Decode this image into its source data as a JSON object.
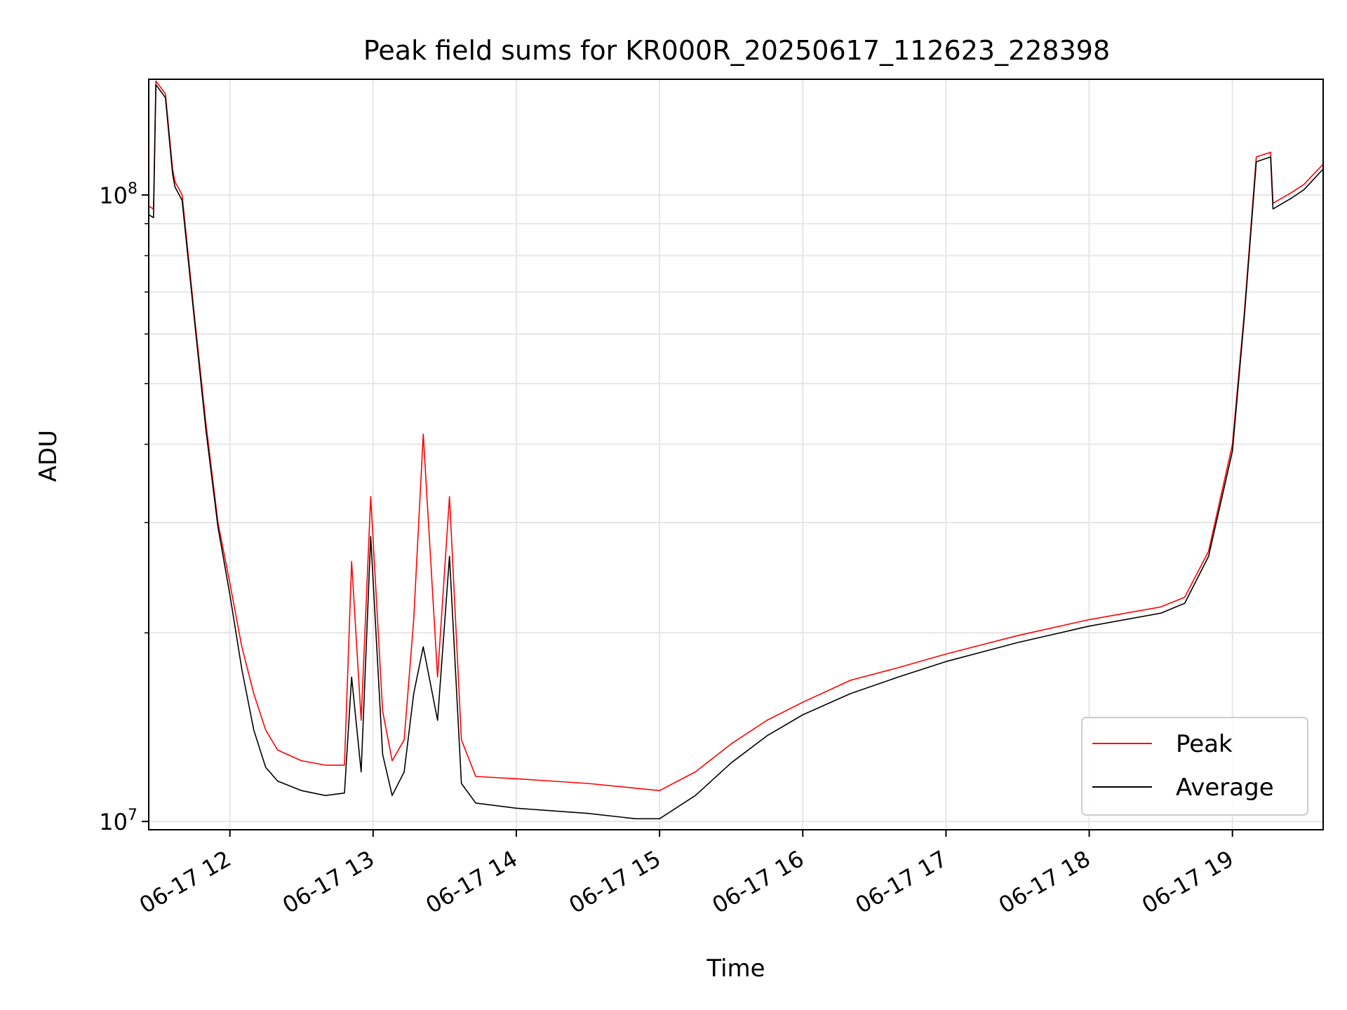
{
  "chart_data": {
    "type": "line",
    "title": "Peak field sums for KR000R_20250617_112623_228398",
    "xlabel": "Time",
    "ylabel": "ADU",
    "y_scale": "log",
    "ylim": [
      9700000,
      153000000
    ],
    "xlim": [
      "2025-06-17 11:26",
      "2025-06-17 19:38"
    ],
    "grid": true,
    "legend_position": "lower right",
    "x_ticks": [
      {
        "value": "2025-06-17 12:00",
        "label": "06-17 12"
      },
      {
        "value": "2025-06-17 13:00",
        "label": "06-17 13"
      },
      {
        "value": "2025-06-17 14:00",
        "label": "06-17 14"
      },
      {
        "value": "2025-06-17 15:00",
        "label": "06-17 15"
      },
      {
        "value": "2025-06-17 16:00",
        "label": "06-17 16"
      },
      {
        "value": "2025-06-17 17:00",
        "label": "06-17 17"
      },
      {
        "value": "2025-06-17 18:00",
        "label": "06-17 18"
      },
      {
        "value": "2025-06-17 19:00",
        "label": "06-17 19"
      }
    ],
    "y_ticks": [
      {
        "value": 10000000,
        "base": "10",
        "exp": "7"
      },
      {
        "value": 100000000,
        "base": "10",
        "exp": "8"
      }
    ],
    "series": [
      {
        "name": "Peak",
        "color": "#ff0000",
        "x": [
          "2025-06-17 11:26",
          "2025-06-17 11:28",
          "2025-06-17 11:29",
          "2025-06-17 11:33",
          "2025-06-17 11:36",
          "2025-06-17 11:37",
          "2025-06-17 11:40",
          "2025-06-17 11:45",
          "2025-06-17 11:50",
          "2025-06-17 11:55",
          "2025-06-17 12:00",
          "2025-06-17 12:05",
          "2025-06-17 12:10",
          "2025-06-17 12:15",
          "2025-06-17 12:20",
          "2025-06-17 12:30",
          "2025-06-17 12:40",
          "2025-06-17 12:48",
          "2025-06-17 12:51",
          "2025-06-17 12:55",
          "2025-06-17 12:59",
          "2025-06-17 13:04",
          "2025-06-17 13:08",
          "2025-06-17 13:13",
          "2025-06-17 13:17",
          "2025-06-17 13:21",
          "2025-06-17 13:27",
          "2025-06-17 13:32",
          "2025-06-17 13:37",
          "2025-06-17 13:43",
          "2025-06-17 14:00",
          "2025-06-17 14:30",
          "2025-06-17 14:50",
          "2025-06-17 15:00",
          "2025-06-17 15:15",
          "2025-06-17 15:30",
          "2025-06-17 15:45",
          "2025-06-17 16:00",
          "2025-06-17 16:20",
          "2025-06-17 16:40",
          "2025-06-17 17:00",
          "2025-06-17 17:30",
          "2025-06-17 18:00",
          "2025-06-17 18:30",
          "2025-06-17 18:40",
          "2025-06-17 18:50",
          "2025-06-17 19:00",
          "2025-06-17 19:05",
          "2025-06-17 19:10",
          "2025-06-17 19:16",
          "2025-06-17 19:17",
          "2025-06-17 19:25",
          "2025-06-17 19:30",
          "2025-06-17 19:38"
        ],
        "y": [
          96000000,
          95000000,
          152000000,
          145000000,
          110000000,
          105000000,
          100000000,
          65000000,
          43000000,
          30000000,
          24000000,
          19000000,
          16000000,
          14000000,
          13000000,
          12500000,
          12300000,
          12300000,
          26000000,
          14500000,
          33000000,
          15000000,
          12500000,
          13500000,
          21000000,
          41500000,
          17000000,
          33000000,
          13500000,
          11800000,
          11700000,
          11500000,
          11300000,
          11200000,
          12000000,
          13300000,
          14500000,
          15500000,
          16800000,
          17600000,
          18500000,
          19800000,
          21000000,
          22000000,
          22800000,
          27000000,
          40000000,
          65000000,
          115000000,
          117000000,
          97000000,
          101000000,
          104000000,
          112000000
        ]
      },
      {
        "name": "Average",
        "color": "#000000",
        "x": [
          "2025-06-17 11:26",
          "2025-06-17 11:28",
          "2025-06-17 11:29",
          "2025-06-17 11:33",
          "2025-06-17 11:36",
          "2025-06-17 11:37",
          "2025-06-17 11:40",
          "2025-06-17 11:45",
          "2025-06-17 11:50",
          "2025-06-17 11:55",
          "2025-06-17 12:00",
          "2025-06-17 12:05",
          "2025-06-17 12:10",
          "2025-06-17 12:15",
          "2025-06-17 12:20",
          "2025-06-17 12:30",
          "2025-06-17 12:40",
          "2025-06-17 12:48",
          "2025-06-17 12:51",
          "2025-06-17 12:55",
          "2025-06-17 12:59",
          "2025-06-17 13:04",
          "2025-06-17 13:08",
          "2025-06-17 13:13",
          "2025-06-17 13:17",
          "2025-06-17 13:21",
          "2025-06-17 13:27",
          "2025-06-17 13:32",
          "2025-06-17 13:37",
          "2025-06-17 13:43",
          "2025-06-17 14:00",
          "2025-06-17 14:30",
          "2025-06-17 14:50",
          "2025-06-17 15:00",
          "2025-06-17 15:15",
          "2025-06-17 15:30",
          "2025-06-17 15:45",
          "2025-06-17 16:00",
          "2025-06-17 16:20",
          "2025-06-17 16:40",
          "2025-06-17 17:00",
          "2025-06-17 17:30",
          "2025-06-17 18:00",
          "2025-06-17 18:30",
          "2025-06-17 18:40",
          "2025-06-17 18:50",
          "2025-06-17 19:00",
          "2025-06-17 19:05",
          "2025-06-17 19:10",
          "2025-06-17 19:16",
          "2025-06-17 19:17",
          "2025-06-17 19:25",
          "2025-06-17 19:30",
          "2025-06-17 19:38"
        ],
        "y": [
          93000000,
          92000000,
          150000000,
          143000000,
          108000000,
          103000000,
          98000000,
          64000000,
          42000000,
          29500000,
          23000000,
          17500000,
          14000000,
          12200000,
          11600000,
          11200000,
          11000000,
          11100000,
          17000000,
          12000000,
          28500000,
          12800000,
          11000000,
          12000000,
          16000000,
          19000000,
          14500000,
          26500000,
          11500000,
          10700000,
          10500000,
          10300000,
          10100000,
          10100000,
          11000000,
          12400000,
          13700000,
          14800000,
          16000000,
          17000000,
          18000000,
          19300000,
          20500000,
          21500000,
          22300000,
          26500000,
          39000000,
          64000000,
          113000000,
          115000000,
          95000000,
          99000000,
          102000000,
          110000000
        ]
      }
    ]
  }
}
